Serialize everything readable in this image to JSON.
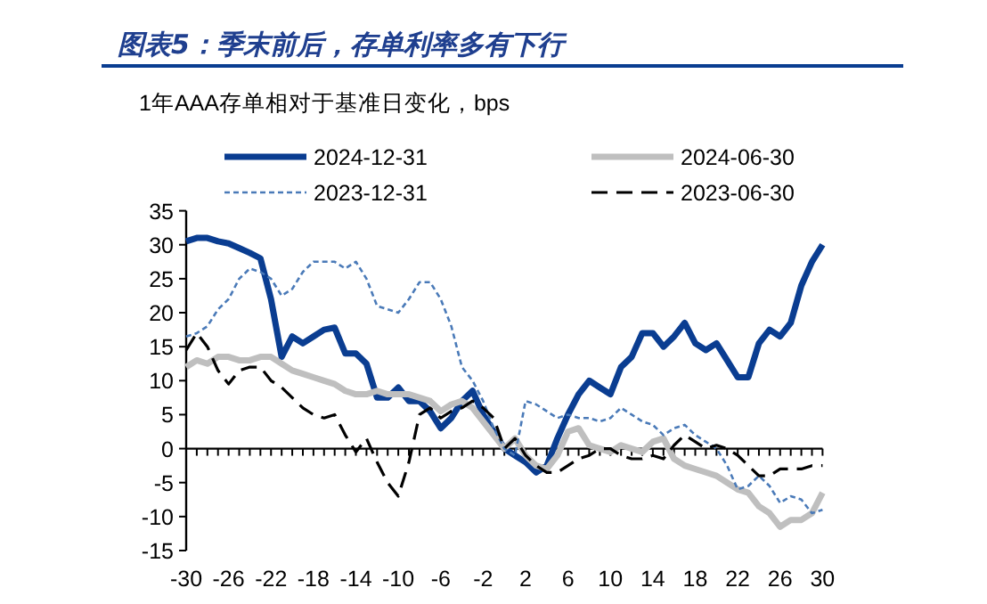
{
  "chart_data": {
    "type": "line",
    "title": "图表5：季末前后，存单利率多有下行",
    "subtitle": "1年AAA存单相对于基准日变化，bps",
    "x": [
      -30,
      -29,
      -28,
      -27,
      -26,
      -25,
      -24,
      -23,
      -22,
      -21,
      -20,
      -19,
      -18,
      -17,
      -16,
      -15,
      -14,
      -13,
      -12,
      -11,
      -10,
      -9,
      -8,
      -7,
      -6,
      -5,
      -4,
      -3,
      -2,
      -1,
      0,
      1,
      2,
      3,
      4,
      5,
      6,
      7,
      8,
      9,
      10,
      11,
      12,
      13,
      14,
      15,
      16,
      17,
      18,
      19,
      20,
      21,
      22,
      23,
      24,
      25,
      26,
      27,
      28,
      29,
      30
    ],
    "xlim": [
      -30,
      30
    ],
    "xticks": [
      -30,
      {
        "value": -29,
        "label": null
      },
      {
        "value": -28,
        "label": null
      },
      {
        "value": -27,
        "label": null
      },
      -26,
      {
        "value": -25,
        "label": null
      },
      {
        "value": -24,
        "label": null
      },
      {
        "value": -23,
        "label": null
      },
      -22,
      {
        "value": -21,
        "label": null
      },
      {
        "value": -20,
        "label": null
      },
      {
        "value": -19,
        "label": null
      },
      -18,
      {
        "value": -17,
        "label": null
      },
      {
        "value": -16,
        "label": null
      },
      {
        "value": -15,
        "label": null
      },
      -14,
      {
        "value": -13,
        "label": null
      },
      {
        "value": -12,
        "label": null
      },
      {
        "value": -11,
        "label": null
      },
      -10,
      {
        "value": -9,
        "label": null
      },
      {
        "value": -8,
        "label": null
      },
      {
        "value": -7,
        "label": null
      },
      -6,
      {
        "value": -5,
        "label": null
      },
      {
        "value": -4,
        "label": null
      },
      {
        "value": -3,
        "label": null
      },
      -2,
      {
        "value": -1,
        "label": null
      },
      {
        "value": 0,
        "label": null
      },
      {
        "value": 1,
        "label": null
      },
      2,
      {
        "value": 3,
        "label": null
      },
      {
        "value": 4,
        "label": null
      },
      {
        "value": 5,
        "label": null
      },
      6,
      {
        "value": 7,
        "label": null
      },
      {
        "value": 8,
        "label": null
      },
      {
        "value": 9,
        "label": null
      },
      10,
      {
        "value": 11,
        "label": null
      },
      {
        "value": 12,
        "label": null
      },
      {
        "value": 13,
        "label": null
      },
      14,
      {
        "value": 15,
        "label": null
      },
      {
        "value": 16,
        "label": null
      },
      {
        "value": 17,
        "label": null
      },
      18,
      {
        "value": 19,
        "label": null
      },
      {
        "value": 20,
        "label": null
      },
      {
        "value": 21,
        "label": null
      },
      22,
      {
        "value": 23,
        "label": null
      },
      {
        "value": 24,
        "label": null
      },
      {
        "value": 25,
        "label": null
      },
      26,
      {
        "value": 27,
        "label": null
      },
      {
        "value": 28,
        "label": null
      },
      {
        "value": 29,
        "label": null
      },
      30
    ],
    "ylim": [
      -15,
      35
    ],
    "yticks": [
      -15,
      -10,
      -5,
      0,
      5,
      10,
      15,
      20,
      25,
      30,
      35
    ],
    "legend": "top",
    "series": [
      {
        "name": "2024-12-31",
        "color": "#0a3d91",
        "line_style": "solid",
        "values": [
          30.5,
          31,
          31,
          30.5,
          30.2,
          29.5,
          28.8,
          28,
          22,
          13.5,
          16.5,
          15.5,
          16.5,
          17.5,
          17.8,
          14,
          14,
          12.5,
          7.5,
          7.5,
          9,
          7,
          7,
          5.5,
          3,
          4.5,
          7,
          8.5,
          5,
          2.5,
          0,
          -1,
          -2,
          -3.5,
          -2.5,
          1.5,
          5,
          8,
          10,
          9,
          8,
          12,
          13.5,
          17,
          17,
          15,
          16.5,
          18.5,
          15.5,
          14.5,
          15.5,
          13,
          10.5,
          10.5,
          15.5,
          17.5,
          16.5,
          18.5,
          24,
          27.5,
          30
        ]
      },
      {
        "name": "2024-06-30",
        "color": "#bfbfbf",
        "line_style": "solid",
        "values": [
          12,
          13,
          12.5,
          13.5,
          13.5,
          13,
          13,
          13.5,
          13.5,
          12.5,
          11.5,
          11,
          10.5,
          10,
          9.5,
          8.5,
          8,
          8,
          8.5,
          8,
          8,
          8,
          7.5,
          7,
          5.5,
          6.5,
          7,
          6,
          4,
          2,
          0,
          1.5,
          -1,
          -2.5,
          -3,
          -1,
          2.5,
          3,
          0.5,
          0,
          -0.5,
          0.5,
          0,
          -0.5,
          1,
          1.5,
          -1.5,
          -2.5,
          -3,
          -3.5,
          -4,
          -5,
          -6,
          -6.5,
          -8.5,
          -9.5,
          -11.5,
          -10.5,
          -10.5,
          -9.5,
          -6.5
        ]
      },
      {
        "name": "2023-12-31",
        "color": "#4a7ab8",
        "line_style": "dashed",
        "values": [
          16.5,
          17,
          18,
          20.5,
          22,
          25,
          26.5,
          26,
          25,
          22.5,
          23.5,
          26,
          27.5,
          27.5,
          27.5,
          26.5,
          27.5,
          25,
          21,
          20.5,
          20,
          22,
          24.5,
          24.5,
          22,
          18,
          12,
          10,
          7,
          3,
          0,
          -1,
          7,
          6.5,
          5.5,
          4.5,
          5,
          4.5,
          4.5,
          4,
          4.5,
          6,
          5,
          4,
          3.5,
          2,
          3,
          3.5,
          2,
          1,
          0,
          -2.5,
          -6,
          -5.5,
          -4,
          -5.5,
          -8,
          -7,
          -7.5,
          -9.5,
          -9
        ]
      },
      {
        "name": "2023-06-30",
        "color": "#000000",
        "line_style": "dashed",
        "values": [
          14.5,
          17,
          15,
          11.5,
          9.5,
          11.5,
          12,
          12,
          10,
          9,
          7.5,
          6,
          5,
          4.5,
          5,
          2,
          -0.5,
          1.5,
          -2,
          -5,
          -7,
          -2,
          5,
          6,
          4.5,
          5.5,
          6,
          7,
          6,
          4.5,
          0,
          1.5,
          -1,
          -2.5,
          -3.5,
          -3.5,
          -2.5,
          -1.5,
          -1,
          0,
          0,
          -1,
          -1.5,
          -1.5,
          -1,
          -1.5,
          0.5,
          2,
          1,
          0,
          0.5,
          0,
          -1,
          -2.5,
          -4,
          -4,
          -3,
          -3,
          -3,
          -2.5,
          -2.5
        ]
      }
    ]
  }
}
